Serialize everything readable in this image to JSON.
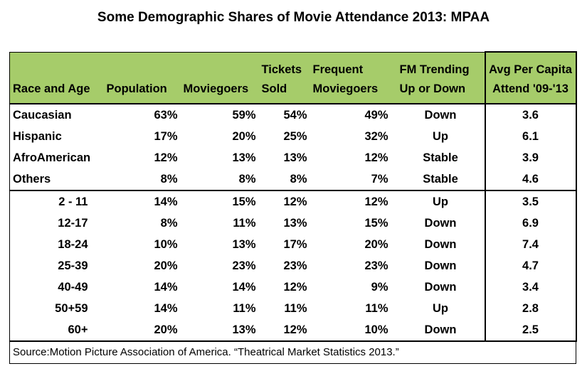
{
  "chart_data": {
    "type": "table",
    "title": "Some Demographic Shares of Movie Attendance 2013: MPAA",
    "columns": [
      [
        "Race and Age"
      ],
      [
        "Population"
      ],
      [
        "Moviegoers"
      ],
      [
        "Tickets",
        "Sold"
      ],
      [
        "Frequent",
        "Moviegoers"
      ],
      [
        "FM Trending",
        "Up or Down"
      ],
      [
        "Avg Per Capita",
        "Attend '09-'13"
      ]
    ],
    "race_rows": [
      {
        "group": "Caucasian",
        "population": "63%",
        "moviegoers": "59%",
        "tickets": "54%",
        "frequent": "49%",
        "trend": "Down",
        "avg": "3.6"
      },
      {
        "group": "Hispanic",
        "population": "17%",
        "moviegoers": "20%",
        "tickets": "25%",
        "frequent": "32%",
        "trend": "Up",
        "avg": "6.1"
      },
      {
        "group": "AfroAmerican",
        "population": "12%",
        "moviegoers": "13%",
        "tickets": "13%",
        "frequent": "12%",
        "trend": "Stable",
        "avg": "3.9"
      },
      {
        "group": "Others",
        "population": "8%",
        "moviegoers": "8%",
        "tickets": "8%",
        "frequent": "7%",
        "trend": "Stable",
        "avg": "4.6"
      }
    ],
    "age_rows": [
      {
        "group": "2 - 11",
        "population": "14%",
        "moviegoers": "15%",
        "tickets": "12%",
        "frequent": "12%",
        "trend": "Up",
        "avg": "3.5"
      },
      {
        "group": "12-17",
        "population": "8%",
        "moviegoers": "11%",
        "tickets": "13%",
        "frequent": "15%",
        "trend": "Down",
        "avg": "6.9"
      },
      {
        "group": "18-24",
        "population": "10%",
        "moviegoers": "13%",
        "tickets": "17%",
        "frequent": "20%",
        "trend": "Down",
        "avg": "7.4"
      },
      {
        "group": "25-39",
        "population": "20%",
        "moviegoers": "23%",
        "tickets": "23%",
        "frequent": "23%",
        "trend": "Down",
        "avg": "4.7"
      },
      {
        "group": "40-49",
        "population": "14%",
        "moviegoers": "14%",
        "tickets": "12%",
        "frequent": "9%",
        "trend": "Down",
        "avg": "3.4"
      },
      {
        "group": "50+59",
        "population": "14%",
        "moviegoers": "11%",
        "tickets": "11%",
        "frequent": "11%",
        "trend": "Up",
        "avg": "2.8"
      },
      {
        "group": "60+",
        "population": "20%",
        "moviegoers": "13%",
        "tickets": "12%",
        "frequent": "10%",
        "trend": "Down",
        "avg": "2.5"
      }
    ],
    "source": "Source:Motion Picture Association of America. “Theatrical Market Statistics 2013.”",
    "header_color": "#a6cc6a"
  }
}
